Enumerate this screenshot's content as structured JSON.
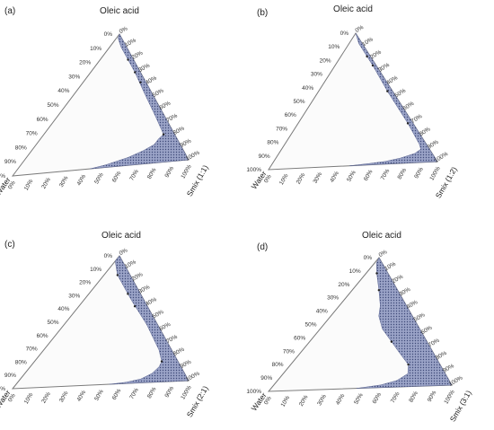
{
  "chart_data": [
    {
      "type": "ternary",
      "panel_label": "(a)",
      "top_label": "Oleic acid",
      "left_label": "Water",
      "right_label": "Smix (1:1)",
      "right_axis_ticks": [
        "0%",
        "10%",
        "20%",
        "30%",
        "40%",
        "50%",
        "60%",
        "70%",
        "80%",
        "90%",
        "100%"
      ],
      "left_axis_ticks": [
        "0%",
        "10%",
        "20%",
        "30%",
        "40%",
        "50%",
        "60%",
        "70%",
        "80%",
        "90%",
        "100%"
      ],
      "bottom_axis_ticks": [
        "0%",
        "10%",
        "20%",
        "30%",
        "40%",
        "50%",
        "60%",
        "70%",
        "80%",
        "90%",
        "100%"
      ],
      "region_name": "nanoemulsion region",
      "region_color": "#9aa3c7",
      "region": [
        {
          "oil": 0.0,
          "water": 0.56
        },
        {
          "oil": 0.02,
          "water": 0.46
        },
        {
          "oil": 0.06,
          "water": 0.32
        },
        {
          "oil": 0.1,
          "water": 0.22
        },
        {
          "oil": 0.14,
          "water": 0.14
        },
        {
          "oil": 0.18,
          "water": 0.1
        },
        {
          "oil": 0.21,
          "water": 0.06
        },
        {
          "oil": 0.35,
          "water": 0.05
        },
        {
          "oil": 0.55,
          "water": 0.04
        },
        {
          "oil": 0.7,
          "water": 0.03
        },
        {
          "oil": 0.9,
          "water": 0.03
        },
        {
          "oil": 0.97,
          "water": 0.02
        },
        {
          "oil": 1.0,
          "water": 0.0
        },
        {
          "oil": 0.0,
          "water": 0.0
        }
      ],
      "points": [
        {
          "oil": 0.21,
          "water": 0.06
        },
        {
          "oil": 0.8,
          "water": 0.03
        },
        {
          "oil": 0.7,
          "water": 0.03
        },
        {
          "oil": 0.62,
          "water": 0.03
        }
      ]
    },
    {
      "type": "ternary",
      "panel_label": "(b)",
      "top_label": "Oleic acid",
      "left_label": "Water",
      "right_label": "Smix (1:2)",
      "right_axis_ticks": [
        "0%",
        "10%",
        "20%",
        "30%",
        "40%",
        "50%",
        "60%",
        "70%",
        "80%",
        "90%",
        "100%"
      ],
      "left_axis_ticks": [
        "0%",
        "10%",
        "20%",
        "30%",
        "40%",
        "50%",
        "60%",
        "70%",
        "80%",
        "90%",
        "100%"
      ],
      "bottom_axis_ticks": [
        "0%",
        "10%",
        "20%",
        "30%",
        "40%",
        "50%",
        "60%",
        "70%",
        "80%",
        "90%",
        "100%"
      ],
      "region_name": "nanoemulsion region",
      "region_color": "#9aa3c7",
      "region": [
        {
          "oil": 0.0,
          "water": 0.52
        },
        {
          "oil": 0.01,
          "water": 0.4
        },
        {
          "oil": 0.02,
          "water": 0.3
        },
        {
          "oil": 0.04,
          "water": 0.2
        },
        {
          "oil": 0.07,
          "water": 0.1
        },
        {
          "oil": 0.1,
          "water": 0.05
        },
        {
          "oil": 0.14,
          "water": 0.04
        },
        {
          "oil": 0.3,
          "water": 0.03
        },
        {
          "oil": 0.55,
          "water": 0.03
        },
        {
          "oil": 0.75,
          "water": 0.02
        },
        {
          "oil": 0.92,
          "water": 0.02
        },
        {
          "oil": 1.0,
          "water": 0.0
        },
        {
          "oil": 0.0,
          "water": 0.0
        }
      ],
      "points": [
        {
          "oil": 0.3,
          "water": 0.03
        },
        {
          "oil": 0.55,
          "water": 0.03
        },
        {
          "oil": 0.75,
          "water": 0.02
        },
        {
          "oil": 0.82,
          "water": 0.02
        }
      ]
    },
    {
      "type": "ternary",
      "panel_label": "(c)",
      "top_label": "Oleic acid",
      "left_label": "Water",
      "right_label": "Smix (2:1)",
      "right_axis_ticks": [
        "0%",
        "10%",
        "20%",
        "30%",
        "40%",
        "50%",
        "60%",
        "70%",
        "80%",
        "90%",
        "100%"
      ],
      "left_axis_ticks": [
        "0%",
        "10%",
        "20%",
        "30%",
        "40%",
        "50%",
        "60%",
        "70%",
        "80%",
        "90%",
        "100%"
      ],
      "bottom_axis_ticks": [
        "0%",
        "10%",
        "20%",
        "30%",
        "40%",
        "50%",
        "60%",
        "70%",
        "80%",
        "90%",
        "100%"
      ],
      "region_name": "nanoemulsion region",
      "region_color": "#9aa3c7",
      "region": [
        {
          "oil": 0.0,
          "water": 0.45
        },
        {
          "oil": 0.01,
          "water": 0.35
        },
        {
          "oil": 0.03,
          "water": 0.26
        },
        {
          "oil": 0.07,
          "water": 0.18
        },
        {
          "oil": 0.12,
          "water": 0.12
        },
        {
          "oil": 0.16,
          "water": 0.09
        },
        {
          "oil": 0.25,
          "water": 0.07
        },
        {
          "oil": 0.45,
          "water": 0.06
        },
        {
          "oil": 0.65,
          "water": 0.07
        },
        {
          "oil": 0.85,
          "water": 0.07
        },
        {
          "oil": 0.96,
          "water": 0.04
        },
        {
          "oil": 1.0,
          "water": 0.0
        },
        {
          "oil": 0.0,
          "water": 0.0
        }
      ],
      "points": [
        {
          "oil": 0.16,
          "water": 0.09
        },
        {
          "oil": 0.7,
          "water": 0.07
        },
        {
          "oil": 0.6,
          "water": 0.07
        },
        {
          "oil": 0.85,
          "water": 0.07
        }
      ]
    },
    {
      "type": "ternary",
      "panel_label": "(d)",
      "top_label": "Oleic acid",
      "left_label": "Water",
      "right_label": "Smix (3:1)",
      "right_axis_ticks": [
        "0%",
        "10%",
        "20%",
        "30%",
        "40%",
        "50%",
        "60%",
        "70%",
        "80%",
        "90%",
        "100%"
      ],
      "left_axis_ticks": [
        "0%",
        "10%",
        "20%",
        "30%",
        "40%",
        "50%",
        "60%",
        "70%",
        "80%",
        "90%",
        "100%"
      ],
      "bottom_axis_ticks": [
        "0%",
        "10%",
        "20%",
        "30%",
        "40%",
        "50%",
        "60%",
        "70%",
        "80%",
        "90%",
        "100%"
      ],
      "region_name": "nanoemulsion region",
      "region_color": "#9aa3c7",
      "region": [
        {
          "oil": 0.0,
          "water": 0.52
        },
        {
          "oil": 0.02,
          "water": 0.38
        },
        {
          "oil": 0.05,
          "water": 0.28
        },
        {
          "oil": 0.1,
          "water": 0.2
        },
        {
          "oil": 0.17,
          "water": 0.17
        },
        {
          "oil": 0.25,
          "water": 0.18
        },
        {
          "oil": 0.35,
          "water": 0.19
        },
        {
          "oil": 0.45,
          "water": 0.2
        },
        {
          "oil": 0.55,
          "water": 0.18
        },
        {
          "oil": 0.63,
          "water": 0.14
        },
        {
          "oil": 0.75,
          "water": 0.1
        },
        {
          "oil": 0.88,
          "water": 0.06
        },
        {
          "oil": 0.96,
          "water": 0.03
        },
        {
          "oil": 1.0,
          "water": 0.0
        },
        {
          "oil": 0.0,
          "water": 0.0
        }
      ],
      "points": [
        {
          "oil": 0.17,
          "water": 0.17
        },
        {
          "oil": 0.35,
          "water": 0.19
        },
        {
          "oil": 0.75,
          "water": 0.1
        },
        {
          "oil": 0.88,
          "water": 0.06
        }
      ]
    }
  ]
}
